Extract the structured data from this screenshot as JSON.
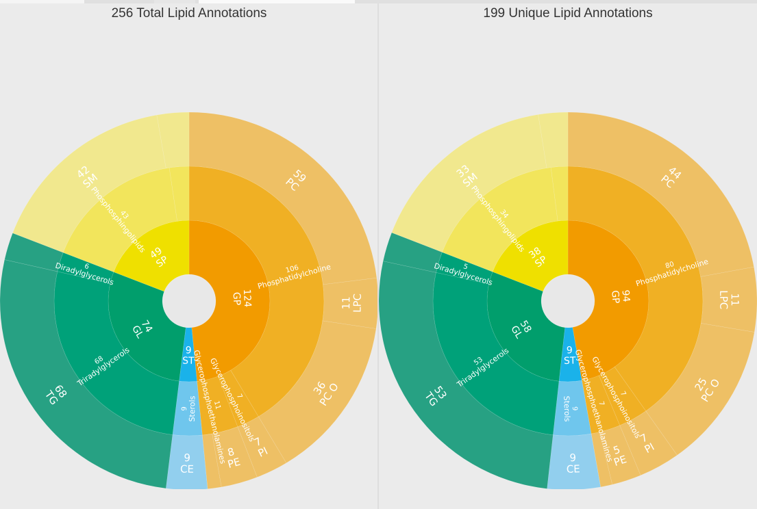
{
  "colors": {
    "background": "#ebebeb",
    "center_hole": "#e8e8e8",
    "GP": "#f29b00",
    "GP_mid": "#f0b024",
    "GP_outer": "#eec065",
    "SP": "#efe000",
    "SP_mid": "#f2e55c",
    "SP_outer": "#f1e88e",
    "GL": "#019e6c",
    "GL_mid": "#00a179",
    "GL_outer": "#27a183",
    "ST": "#1ab2ea",
    "ST_mid": "#6fc6ed",
    "ST_outer": "#92cfee",
    "label": "#ffffff"
  },
  "chart_data": [
    {
      "type": "sunburst",
      "title": "256 Total Lipid Annotations",
      "rings": {
        "inner": [
          {
            "name": "GP",
            "value": 124,
            "color": "GP"
          },
          {
            "name": "ST",
            "value": 9,
            "color": "ST"
          },
          {
            "name": "GL",
            "value": 74,
            "color": "GL"
          },
          {
            "name": "SP",
            "value": 49,
            "color": "SP"
          }
        ],
        "middle": [
          {
            "name": "Phosphatidylcholine",
            "value": 106,
            "color": "GP_mid"
          },
          {
            "name": "Glycerophosphoinositols",
            "value": 7,
            "color": "GP_mid"
          },
          {
            "name": "Glycerophosphoethanolamines",
            "value": 11,
            "color": "GP_mid"
          },
          {
            "name": "Sterols",
            "value": 9,
            "color": "ST_mid"
          },
          {
            "name": "Triradylglycerols",
            "value": 68,
            "color": "GL_mid"
          },
          {
            "name": "Diradylglycerols",
            "value": 6,
            "color": "GL_mid"
          },
          {
            "name": "Phosphosphingolipids",
            "value": 43,
            "color": "SP_mid"
          },
          {
            "name": "",
            "value": 6,
            "color": "SP_mid"
          }
        ],
        "outer": [
          {
            "name": "PC",
            "value": 59,
            "color": "GP_outer"
          },
          {
            "name": "LPC",
            "value": 11,
            "color": "GP_outer"
          },
          {
            "name": "PC O",
            "value": 36,
            "color": "GP_outer"
          },
          {
            "name": "PI",
            "value": 7,
            "color": "GP_outer"
          },
          {
            "name": "PE",
            "value": 8,
            "color": "GP_outer"
          },
          {
            "name": "",
            "value": 3,
            "color": "GP_outer"
          },
          {
            "name": "CE",
            "value": 9,
            "color": "ST_outer"
          },
          {
            "name": "TG",
            "value": 68,
            "color": "GL_outer"
          },
          {
            "name": "",
            "value": 6,
            "color": "GL_outer"
          },
          {
            "name": "SM",
            "value": 42,
            "color": "SP_outer"
          },
          {
            "name": "",
            "value": 7,
            "color": "SP_outer"
          }
        ]
      }
    },
    {
      "type": "sunburst",
      "title": "199 Unique Lipid Annotations",
      "rings": {
        "inner": [
          {
            "name": "GP",
            "value": 94,
            "color": "GP"
          },
          {
            "name": "ST",
            "value": 9,
            "color": "ST"
          },
          {
            "name": "GL",
            "value": 58,
            "color": "GL"
          },
          {
            "name": "SP",
            "value": 38,
            "color": "SP"
          }
        ],
        "middle": [
          {
            "name": "Phosphatidylcholine",
            "value": 80,
            "color": "GP_mid"
          },
          {
            "name": "Glycerophosphoinositols",
            "value": 7,
            "color": "GP_mid"
          },
          {
            "name": "Glycerophosphoethanolamines",
            "value": 7,
            "color": "GP_mid"
          },
          {
            "name": "Sterols",
            "value": 9,
            "color": "ST_mid"
          },
          {
            "name": "Triradylglycerols",
            "value": 53,
            "color": "GL_mid"
          },
          {
            "name": "Diradylglycerols",
            "value": 5,
            "color": "GL_mid"
          },
          {
            "name": "Phosphosphingolipids",
            "value": 34,
            "color": "SP_mid"
          },
          {
            "name": "",
            "value": 4,
            "color": "SP_mid"
          }
        ],
        "outer": [
          {
            "name": "PC",
            "value": 44,
            "color": "GP_outer"
          },
          {
            "name": "LPC",
            "value": 11,
            "color": "GP_outer"
          },
          {
            "name": "PC O",
            "value": 25,
            "color": "GP_outer"
          },
          {
            "name": "PI",
            "value": 7,
            "color": "GP_outer"
          },
          {
            "name": "PE",
            "value": 5,
            "color": "GP_outer"
          },
          {
            "name": "",
            "value": 2,
            "color": "GP_outer"
          },
          {
            "name": "CE",
            "value": 9,
            "color": "ST_outer"
          },
          {
            "name": "TG",
            "value": 53,
            "color": "GL_outer"
          },
          {
            "name": "",
            "value": 5,
            "color": "GL_outer"
          },
          {
            "name": "SM",
            "value": 33,
            "color": "SP_outer"
          },
          {
            "name": "",
            "value": 5,
            "color": "SP_outer"
          }
        ]
      }
    }
  ]
}
